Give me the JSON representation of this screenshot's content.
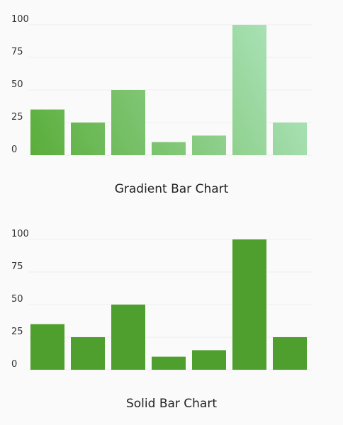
{
  "colors": {
    "background": "#fafafa",
    "gridline": "#eeeeee",
    "tick_text": "#333333",
    "title_text": "#222222",
    "solid_bar": "#4e9f2d",
    "gradient_start": "#5aad3a",
    "gradient_end": "#b3e8c6"
  },
  "chart_data": [
    {
      "type": "bar",
      "style": "gradient",
      "title": "Gradient Bar Chart",
      "categories": [
        "",
        "",
        "",
        "",
        "",
        "",
        ""
      ],
      "values": [
        35,
        25,
        50,
        10,
        15,
        100,
        25
      ],
      "ylim": [
        0,
        100
      ],
      "yticks": [
        "0",
        "25",
        "50",
        "75",
        "100"
      ],
      "grid": true,
      "legend": "none",
      "xlabel": "",
      "ylabel": ""
    },
    {
      "type": "bar",
      "style": "solid",
      "title": "Solid Bar Chart",
      "categories": [
        "",
        "",
        "",
        "",
        "",
        "",
        ""
      ],
      "values": [
        35,
        25,
        50,
        10,
        15,
        100,
        25
      ],
      "ylim": [
        0,
        100
      ],
      "yticks": [
        "0",
        "25",
        "50",
        "75",
        "100"
      ],
      "grid": true,
      "legend": "none",
      "xlabel": "",
      "ylabel": ""
    }
  ]
}
